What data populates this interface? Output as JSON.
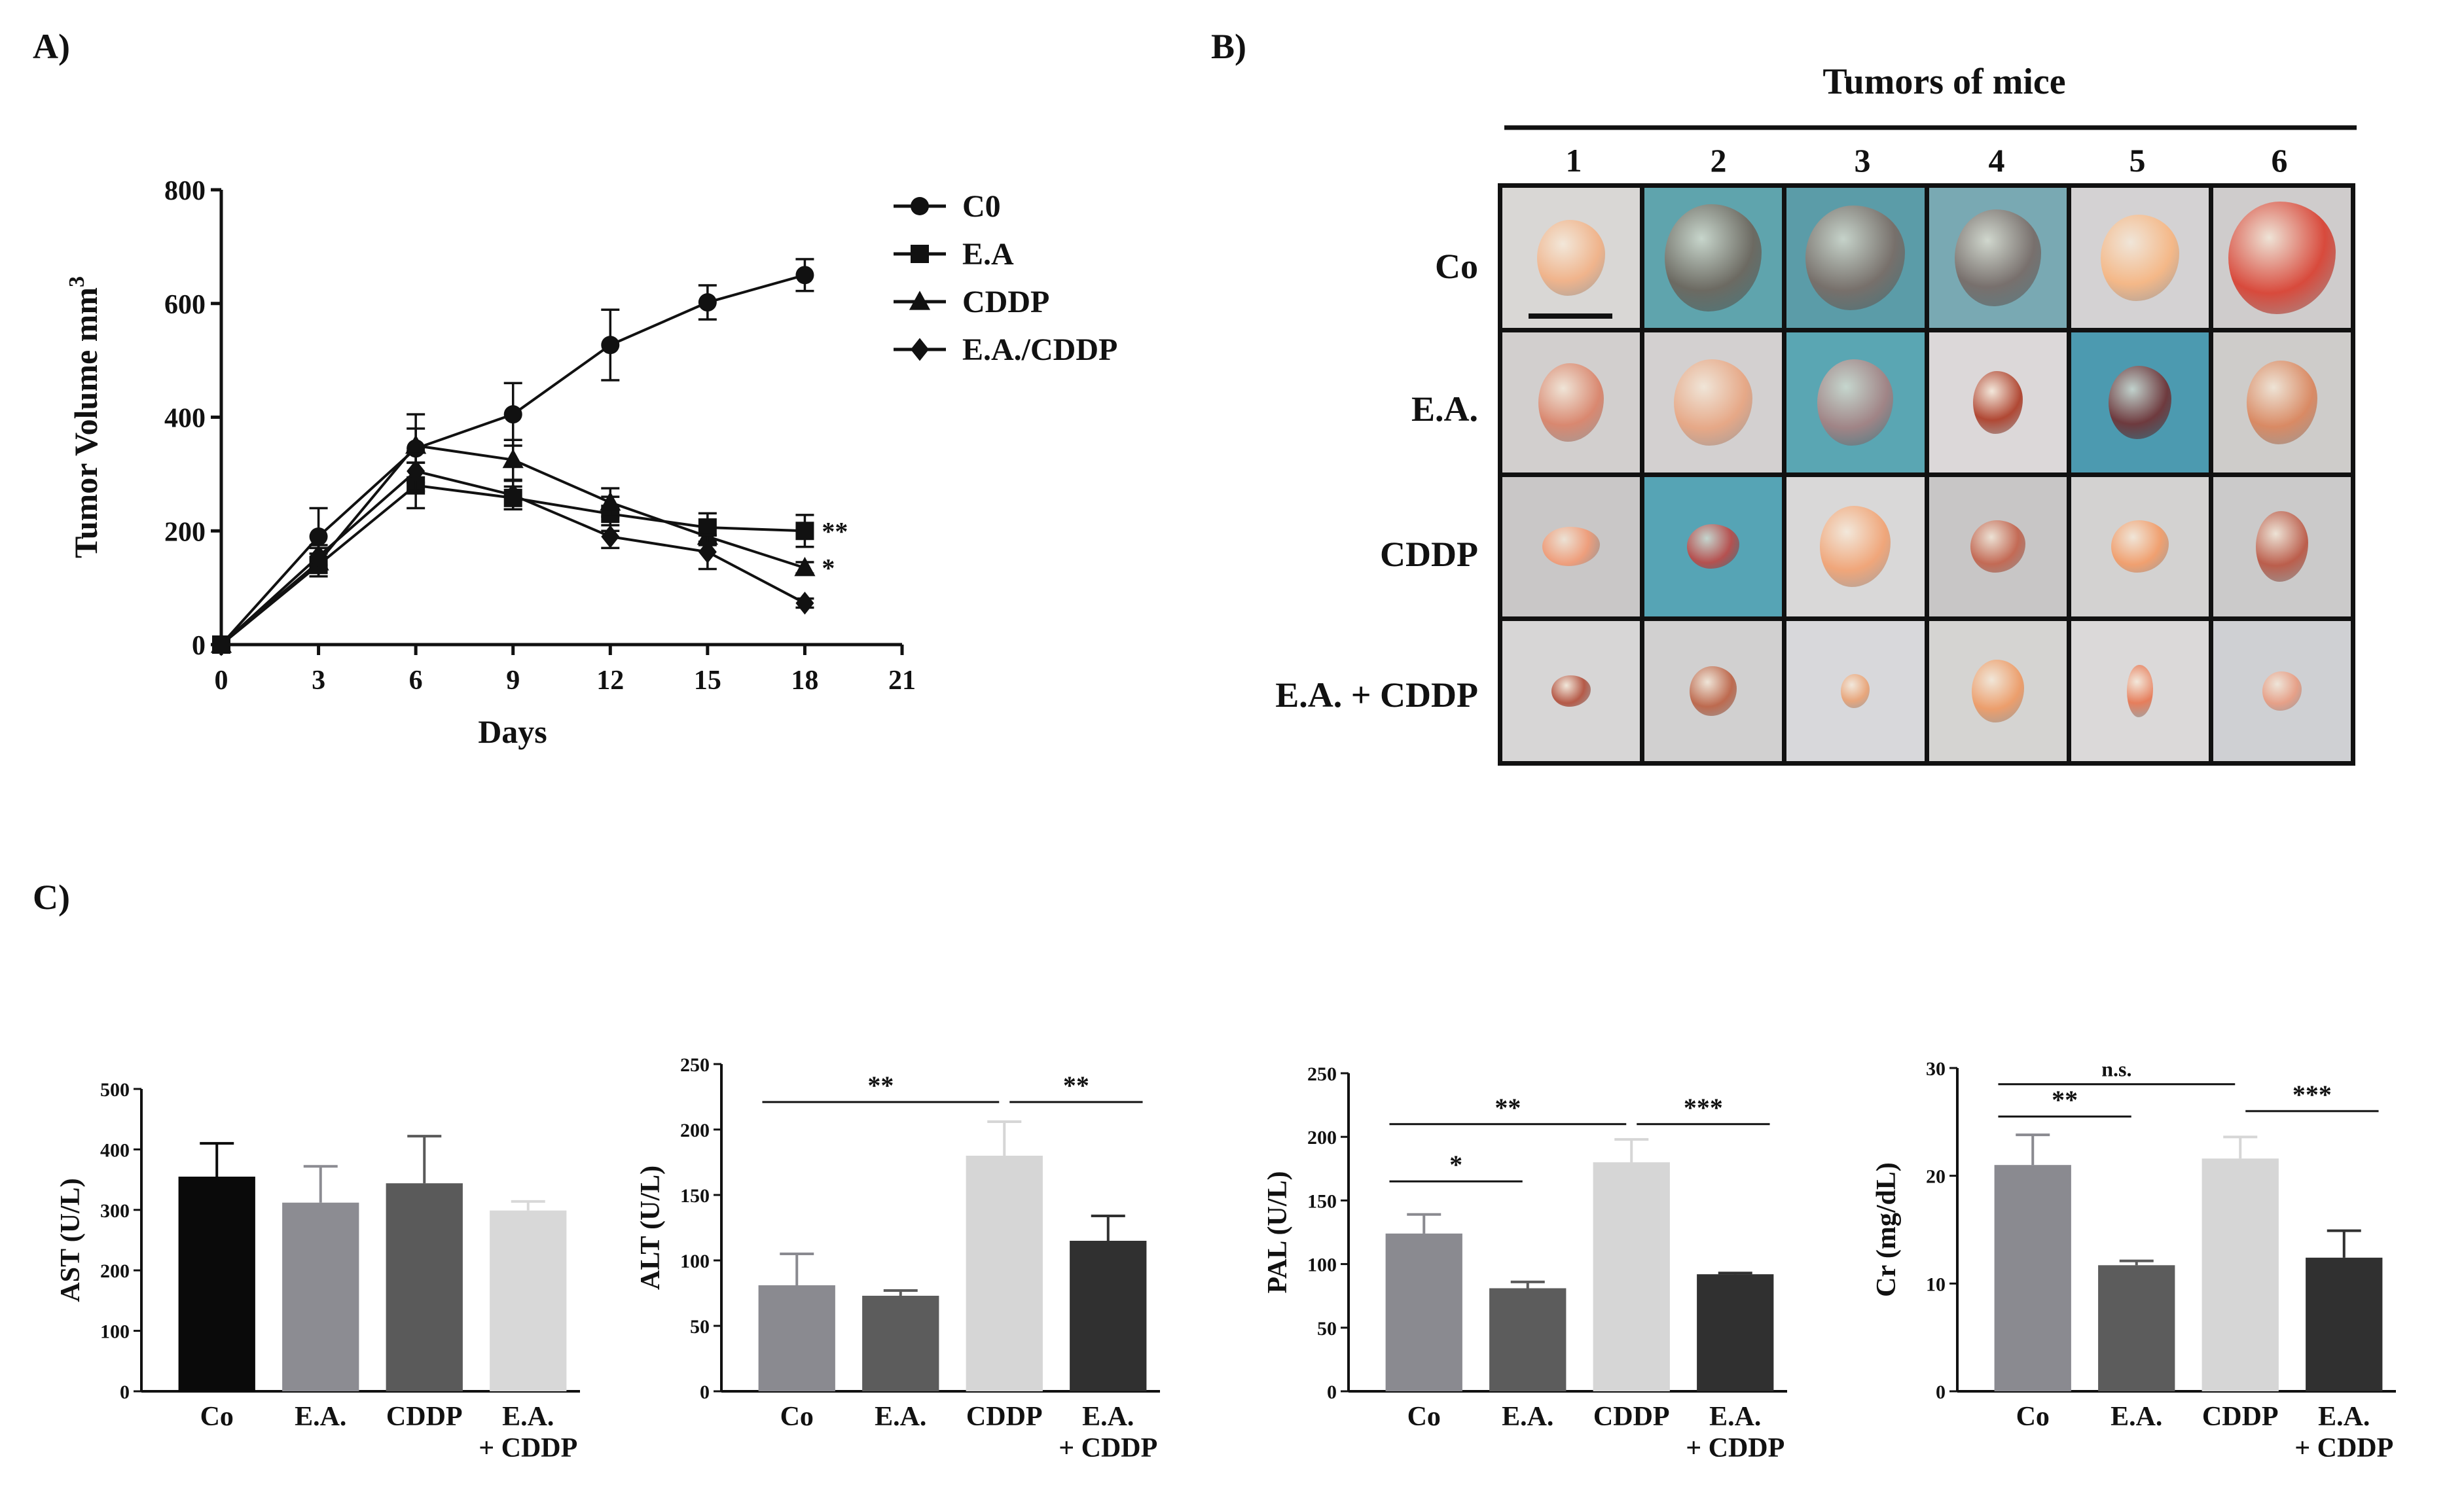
{
  "panels": {
    "a": "A)",
    "b": "B)",
    "c": "C)"
  },
  "line_chart": {
    "type": "line",
    "ylabel_main": "Tumor Volume mm",
    "ylabel_sup": "3",
    "xlabel": "Days",
    "x_ticks": [
      "0",
      "3",
      "6",
      "9",
      "12",
      "15",
      "18",
      "21"
    ],
    "y_ticks": [
      "0",
      "200",
      "400",
      "600",
      "800"
    ],
    "xlim": [
      0,
      21
    ],
    "ylim": [
      0,
      800
    ],
    "series": [
      {
        "name": "C0",
        "marker": "circle",
        "x": [
          0,
          3,
          6,
          9,
          12,
          15,
          18
        ],
        "values": [
          0,
          190,
          345,
          405,
          527,
          602,
          650
        ],
        "err": [
          0,
          50,
          60,
          55,
          62,
          30,
          28
        ],
        "sig": ""
      },
      {
        "name": "E.A",
        "marker": "square",
        "x": [
          0,
          3,
          6,
          9,
          12,
          15,
          18
        ],
        "values": [
          0,
          140,
          280,
          258,
          230,
          206,
          200
        ],
        "err": [
          0,
          20,
          40,
          20,
          30,
          25,
          28
        ],
        "sig": "**"
      },
      {
        "name": "CDDP",
        "marker": "triangle",
        "x": [
          0,
          3,
          6,
          9,
          12,
          15,
          18
        ],
        "values": [
          0,
          145,
          350,
          325,
          250,
          190,
          135
        ],
        "err": [
          0,
          25,
          30,
          35,
          25,
          15,
          10
        ],
        "sig": "*"
      },
      {
        "name": "E.A./CDDP",
        "marker": "diamond",
        "x": [
          0,
          3,
          6,
          9,
          12,
          15,
          18
        ],
        "values": [
          0,
          155,
          305,
          263,
          190,
          163,
          73
        ],
        "err": [
          0,
          20,
          35,
          25,
          20,
          30,
          8
        ],
        "sig": ""
      }
    ]
  },
  "tumors": {
    "title": "Tumors of mice",
    "columns": [
      "1",
      "2",
      "3",
      "4",
      "5",
      "6"
    ],
    "rows": [
      "Co",
      "E.A.",
      "CDDP",
      "E.A. + CDDP"
    ]
  },
  "chart_data": [
    {
      "type": "bar",
      "ylabel": "AST (U/L)",
      "categories": [
        "Co",
        "E.A.",
        "CDDP",
        "E.A. + CDDP"
      ],
      "values": [
        355,
        312,
        344,
        299
      ],
      "err": [
        55,
        60,
        78,
        15
      ],
      "ylim": [
        0,
        500
      ],
      "y_ticks": [
        "0",
        "100",
        "200",
        "300",
        "400",
        "500"
      ],
      "colors": [
        "#0a0a0a",
        "#8c8c92",
        "#5a5a5a",
        "#d8d8d8"
      ],
      "sig": []
    },
    {
      "type": "bar",
      "ylabel": "ALT (U/L)",
      "categories": [
        "Co",
        "E.A.",
        "CDDP",
        "E.A. + CDDP"
      ],
      "values": [
        81,
        73,
        180,
        115
      ],
      "err": [
        24,
        4,
        26,
        19
      ],
      "ylim": [
        0,
        250
      ],
      "y_ticks": [
        "0",
        "50",
        "100",
        "150",
        "200",
        "250"
      ],
      "colors": [
        "#8a8a90",
        "#5c5c5c",
        "#d6d6d6",
        "#303030"
      ],
      "sig": [
        {
          "from": 0,
          "to": 2,
          "label": "**",
          "level": 221
        },
        {
          "from": 2,
          "to": 3,
          "label": "**",
          "level": 221
        }
      ]
    },
    {
      "type": "bar",
      "ylabel": "PAL (U/L)",
      "categories": [
        "Co",
        "E.A.",
        "CDDP",
        "E.A. + CDDP"
      ],
      "values": [
        124,
        81,
        180,
        92
      ],
      "err": [
        15,
        5,
        18,
        1
      ],
      "ylim": [
        0,
        250
      ],
      "y_ticks": [
        "0",
        "50",
        "100",
        "150",
        "200",
        "250"
      ],
      "colors": [
        "#8a8a90",
        "#5c5c5c",
        "#d6d6d6",
        "#303030"
      ],
      "sig": [
        {
          "from": 0,
          "to": 2,
          "label": "**",
          "level": 210
        },
        {
          "from": 2,
          "to": 3,
          "label": "***",
          "level": 210
        },
        {
          "from": 0,
          "to": 1,
          "label": "*",
          "level": 165
        }
      ]
    },
    {
      "type": "bar",
      "ylabel": "Cr (mg/dL)",
      "categories": [
        "Co",
        "E.A.",
        "CDDP",
        "E.A. + CDDP"
      ],
      "values": [
        21.0,
        11.7,
        21.6,
        12.4
      ],
      "err": [
        2.8,
        0.4,
        2.0,
        2.5
      ],
      "ylim": [
        0,
        30
      ],
      "y_ticks": [
        "0",
        "10",
        "20",
        "30"
      ],
      "colors": [
        "#8a8a90",
        "#5c5c5c",
        "#d6d6d6",
        "#303030"
      ],
      "sig": [
        {
          "from": 0,
          "to": 2,
          "label": "n.s.",
          "level": 28.5
        },
        {
          "from": 0,
          "to": 1,
          "label": "**",
          "level": 25.5
        },
        {
          "from": 2,
          "to": 3,
          "label": "***",
          "level": 26
        }
      ]
    }
  ]
}
